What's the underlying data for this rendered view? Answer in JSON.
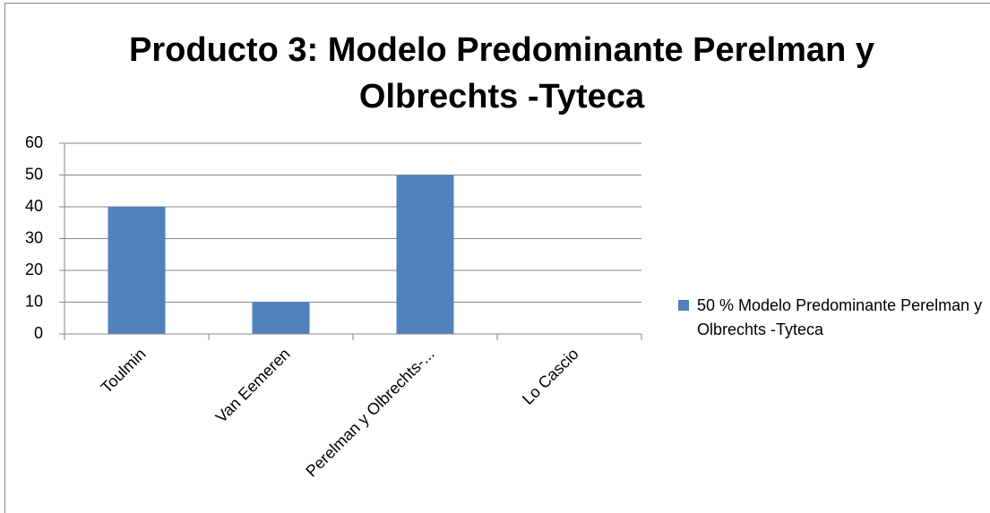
{
  "chart_data": {
    "type": "bar",
    "title": "Producto 3: Modelo Predominante Perelman y Olbrechts -Tyteca",
    "categories": [
      "Toulmin",
      "Van Eemeren",
      "Perelman y Olbrechts-...",
      "Lo Cascio"
    ],
    "series": [
      {
        "name": "50 % Modelo Predominante Perelman y Olbrechts -Tyteca",
        "color": "#4f81bd",
        "values": [
          40,
          10,
          50,
          0
        ]
      }
    ],
    "ylim": [
      0,
      60
    ],
    "yticks": [
      0,
      10,
      20,
      30,
      40,
      50,
      60
    ],
    "grid": true,
    "legend": "right"
  }
}
